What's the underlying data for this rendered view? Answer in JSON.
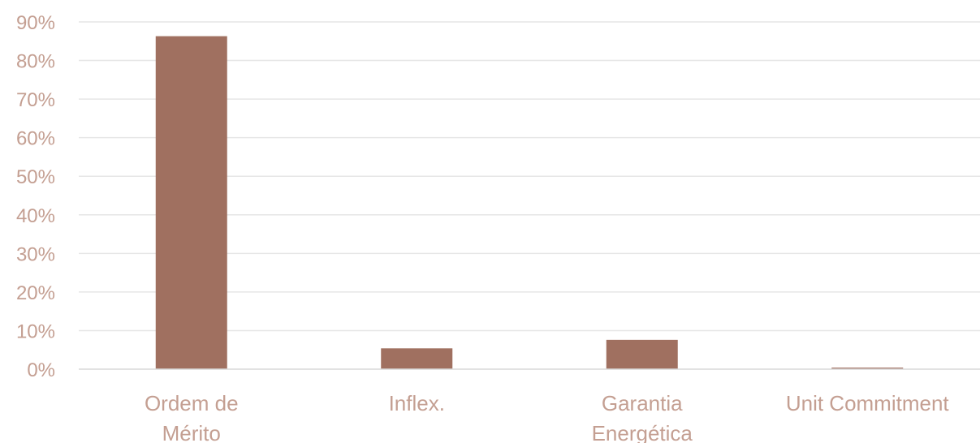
{
  "colors": {
    "bar": "#A07060",
    "text": "#C49F92",
    "grid": "#E6E6E6",
    "axis": "#D9D9D9"
  },
  "chart_data": {
    "type": "bar",
    "title": "",
    "xlabel": "",
    "ylabel": "",
    "categories": [
      [
        "Ordem de",
        "Mérito"
      ],
      [
        "Inflex."
      ],
      [
        "Garantia",
        "Energética"
      ],
      [
        "Unit Commitment"
      ]
    ],
    "values": [
      86.3,
      5.4,
      7.6,
      0.4
    ],
    "ylim": [
      0,
      90
    ],
    "yticks": [
      0,
      10,
      20,
      30,
      40,
      50,
      60,
      70,
      80,
      90
    ],
    "ytick_labels": [
      "0%",
      "10%",
      "20%",
      "30%",
      "40%",
      "50%",
      "60%",
      "70%",
      "80%",
      "90%"
    ],
    "grid": true,
    "legend": "none"
  }
}
